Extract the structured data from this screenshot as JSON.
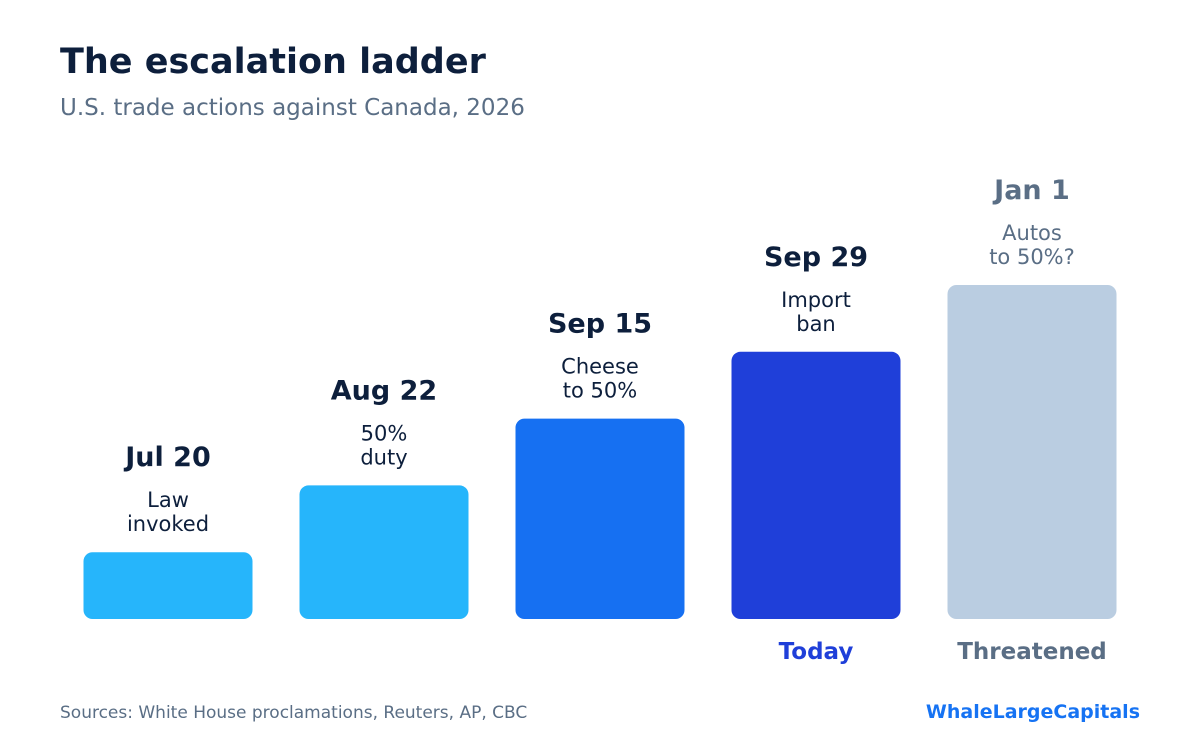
{
  "header": {
    "title": "The escalation ladder",
    "subtitle": "U.S. trade actions against Canada, 2026"
  },
  "footer": {
    "sources": "Sources: White House proclamations, Reuters, AP, CBC",
    "brand": "WhaleLargeCapitals"
  },
  "chart_data": {
    "type": "bar",
    "title": "The escalation ladder",
    "subtitle": "U.S. trade actions against Canada, 2026",
    "xlabel": "",
    "ylabel": "",
    "grid": false,
    "categories": [
      "Jul 20",
      "Aug 22",
      "Sep 15",
      "Sep 29",
      "Jan 1"
    ],
    "values": [
      1,
      2,
      3,
      4,
      5
    ],
    "ylim": [
      0,
      5
    ],
    "annotations": [
      [
        "Law",
        "invoked"
      ],
      [
        "50%",
        "duty"
      ],
      [
        "Cheese",
        "to 50%"
      ],
      [
        "Import",
        "ban"
      ],
      [
        "Autos",
        "to 50%?"
      ]
    ],
    "status_labels": [
      "",
      "",
      "",
      "Today",
      "Threatened"
    ],
    "colors": [
      "#26b5fb",
      "#26b5fb",
      "#1670f2",
      "#1f3fd9",
      "#bacde1"
    ],
    "label_colors": {
      "past": "#0d1f3c",
      "today": "#1f3fd9",
      "threatened": "#5a6e85"
    }
  }
}
